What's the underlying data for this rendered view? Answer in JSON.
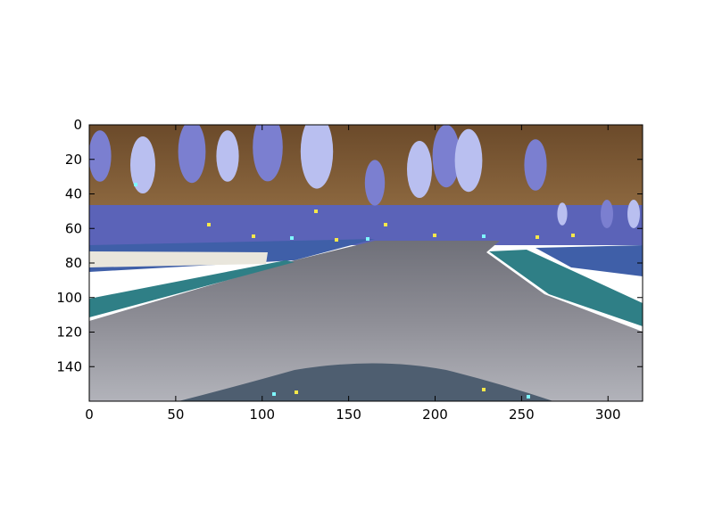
{
  "chart_data": {
    "type": "image",
    "title": "",
    "xlabel": "",
    "ylabel": "",
    "xlim": [
      0,
      320
    ],
    "ylim": [
      160,
      0
    ],
    "x_ticks": [
      0,
      50,
      100,
      150,
      200,
      250,
      300
    ],
    "y_ticks": [
      0,
      20,
      40,
      60,
      80,
      100,
      120,
      140
    ],
    "image_size": {
      "width": 320,
      "height": 160
    },
    "grid": false,
    "colors": {
      "sky_top": "#6b4a2a",
      "sky_bottom": "#9a7448",
      "trees": "#b9bff0",
      "tree_shadow": "#7b7fd0",
      "hills": "#5b63b8",
      "water": "#3f5fa8",
      "track": "#8e8e96",
      "track_dark": "#5a5f66",
      "curb": "#2f7f86",
      "car_hood": "#4e5e70",
      "highlight_yellow": "#f6e84a",
      "highlight_cyan": "#7ff7ff"
    }
  }
}
